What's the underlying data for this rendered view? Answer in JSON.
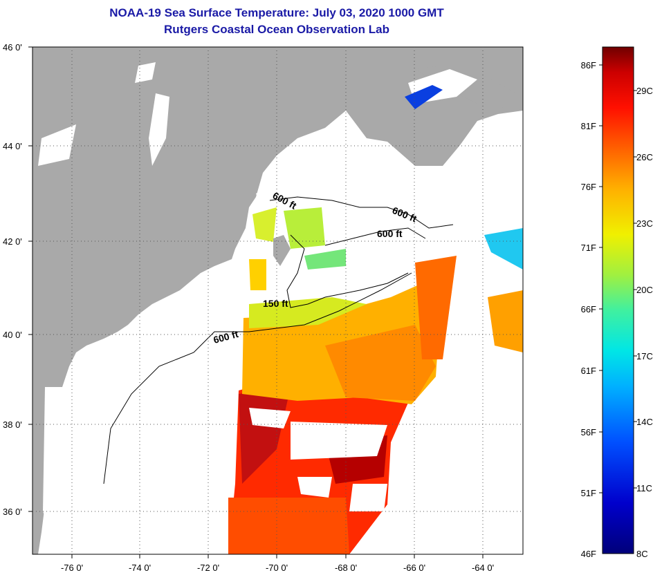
{
  "title": {
    "line1": "NOAA-19 Sea Surface Temperature:  July 03, 2020 1000 GMT",
    "line2": "Rutgers Coastal Ocean Observation Lab"
  },
  "map": {
    "lat_labels": [
      "46 0'",
      "44 0'",
      "42 0'",
      "40 0'",
      "38 0'",
      "36 0'"
    ],
    "lon_labels": [
      "-76 0'",
      "-74 0'",
      "-72 0'",
      "-70 0'",
      "-68 0'",
      "-66 0'",
      "-64 0'"
    ],
    "contour_labels": [
      "600 ft",
      "600 ft",
      "600 ft",
      "150 ft",
      "600 ft"
    ],
    "land_color": "#a9a9a9",
    "water_color": "#ffffff"
  },
  "colorbar": {
    "f_labels": [
      "86F",
      "81F",
      "76F",
      "71F",
      "66F",
      "61F",
      "56F",
      "51F",
      "46F"
    ],
    "c_labels": [
      "29C",
      "26C",
      "23C",
      "20C",
      "17C",
      "14C",
      "11C",
      "8C"
    ],
    "range_f": [
      46,
      88
    ],
    "range_c": [
      8,
      31
    ]
  }
}
